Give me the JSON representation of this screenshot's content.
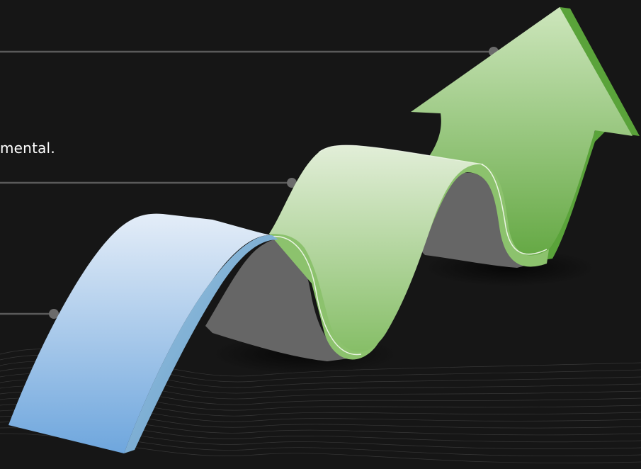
{
  "slide": {
    "caption": "mental.",
    "colors": {
      "background": "#161616",
      "connector": "#5a5a5a",
      "dot": "#6b6b6b",
      "blue_top": "#dbe7f5",
      "blue_bottom": "#6ea6dd",
      "green_top": "#d9ebd0",
      "green_bottom": "#6fb04f",
      "arrow_top": "#c8e3b6",
      "arrow_bottom": "#5ea63c",
      "shadow_wall": "#666666"
    },
    "icons": {
      "graphic": "rising-wave-arrow-icon",
      "markers": "connector-dot-icon"
    }
  }
}
